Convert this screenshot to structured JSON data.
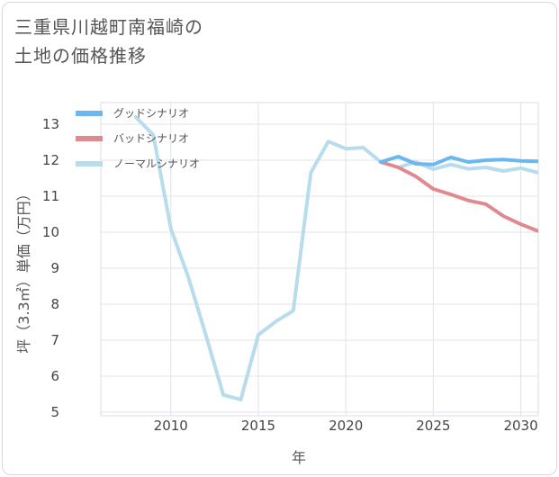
{
  "title": {
    "line1": "三重県川越町南福崎の",
    "line2": "土地の価格推移"
  },
  "chart_data": {
    "type": "line",
    "xlabel": "年",
    "ylabel": "坪（3.3㎡）単価（万円）",
    "xlim": [
      2006,
      2031
    ],
    "ylim": [
      4.9,
      13.6
    ],
    "xticks": [
      2010,
      2015,
      2020,
      2025,
      2030
    ],
    "yticks": [
      5,
      6,
      7,
      8,
      9,
      10,
      11,
      12,
      13
    ],
    "grid": true,
    "legend_position": "top-left",
    "series": [
      {
        "name": "グッドシナリオ",
        "color": "#6cb8ee",
        "x": [
          2022,
          2023,
          2024,
          2025,
          2026,
          2027,
          2028,
          2029,
          2030,
          2031
        ],
        "y": [
          11.95,
          12.1,
          11.9,
          11.88,
          12.08,
          11.95,
          12.0,
          12.02,
          11.98,
          11.97
        ]
      },
      {
        "name": "バッドシナリオ",
        "color": "#e08a8f",
        "x": [
          2022,
          2023,
          2024,
          2025,
          2026,
          2027,
          2028,
          2029,
          2030,
          2031
        ],
        "y": [
          11.95,
          11.8,
          11.55,
          11.2,
          11.05,
          10.88,
          10.78,
          10.45,
          10.22,
          10.03
        ]
      },
      {
        "name": "ノーマルシナリオ",
        "color": "#b7dcec",
        "x": [
          2008,
          2009,
          2010,
          2011,
          2012,
          2013,
          2014,
          2015,
          2016,
          2017,
          2018,
          2019,
          2020,
          2021,
          2022,
          2023,
          2024,
          2025,
          2026,
          2027,
          2028,
          2029,
          2030,
          2031
        ],
        "y": [
          13.2,
          12.7,
          10.1,
          8.75,
          7.15,
          5.48,
          5.35,
          7.15,
          7.52,
          7.82,
          11.65,
          12.52,
          12.32,
          12.35,
          11.95,
          11.8,
          11.95,
          11.75,
          11.88,
          11.76,
          11.8,
          11.7,
          11.78,
          11.65
        ]
      }
    ]
  }
}
